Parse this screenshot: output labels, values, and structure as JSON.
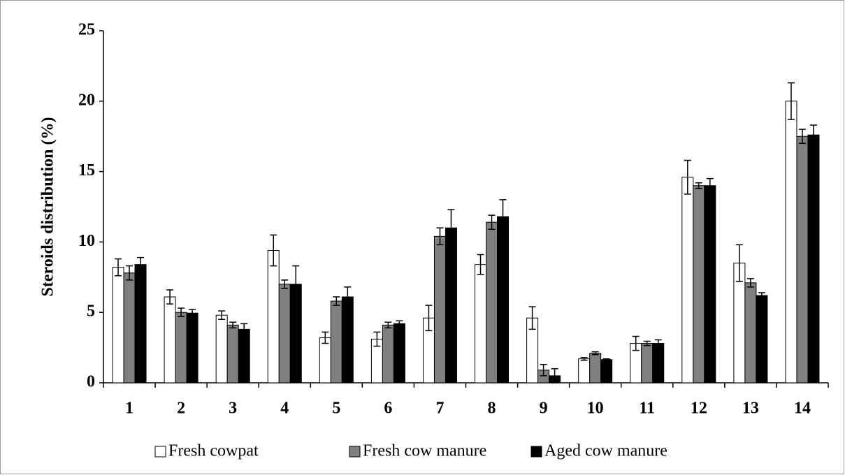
{
  "chart_data": {
    "type": "bar",
    "y_label": "Steroids distribution (%)",
    "categories": [
      "1",
      "2",
      "3",
      "4",
      "5",
      "6",
      "7",
      "8",
      "9",
      "10",
      "11",
      "12",
      "13",
      "14"
    ],
    "ylim": [
      0,
      25
    ],
    "yticks": [
      0,
      5,
      10,
      15,
      20,
      25
    ],
    "grid": false,
    "legend": "bottom",
    "series": [
      {
        "name": "Fresh cowpat",
        "color": "#ffffff",
        "values": [
          8.2,
          6.1,
          4.8,
          9.4,
          3.2,
          3.1,
          4.6,
          8.4,
          4.6,
          1.7,
          2.8,
          14.6,
          8.5,
          20.0
        ],
        "errors": [
          0.6,
          0.5,
          0.3,
          1.1,
          0.4,
          0.5,
          0.9,
          0.7,
          0.8,
          0.1,
          0.5,
          1.2,
          1.3,
          1.3
        ]
      },
      {
        "name": "Fresh cow manure",
        "color": "#808080",
        "values": [
          7.8,
          5.0,
          4.1,
          7.0,
          5.8,
          4.1,
          10.4,
          11.4,
          0.9,
          2.1,
          2.8,
          14.0,
          7.1,
          17.5
        ],
        "errors": [
          0.5,
          0.3,
          0.2,
          0.3,
          0.3,
          0.2,
          0.6,
          0.5,
          0.4,
          0.1,
          0.15,
          0.2,
          0.3,
          0.5
        ]
      },
      {
        "name": "Aged cow manure",
        "color": "#000000",
        "values": [
          8.4,
          4.95,
          3.8,
          7.0,
          6.1,
          4.2,
          11.0,
          11.8,
          0.5,
          1.65,
          2.8,
          14.0,
          6.2,
          17.6
        ],
        "errors": [
          0.5,
          0.25,
          0.4,
          1.3,
          0.7,
          0.2,
          1.3,
          1.2,
          0.5,
          0.05,
          0.25,
          0.5,
          0.2,
          0.7
        ]
      }
    ]
  }
}
